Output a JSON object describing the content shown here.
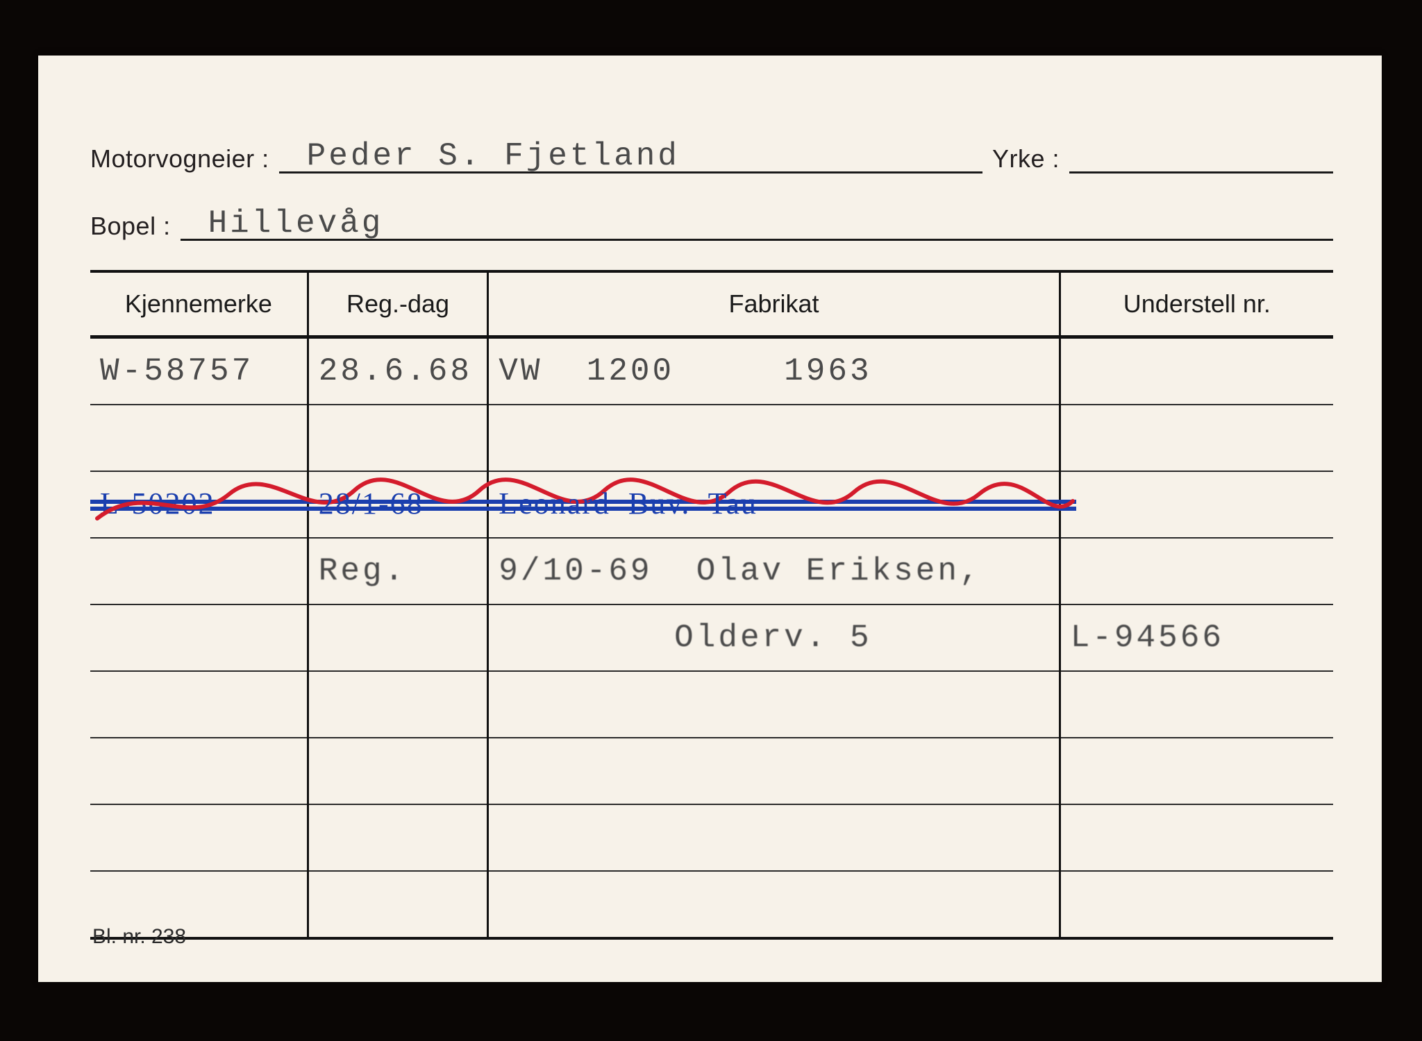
{
  "header": {
    "owner_label": "Motorvogneier :",
    "owner_value": "Peder S. Fjetland",
    "occupation_label": "Yrke :",
    "occupation_value": "",
    "residence_label": "Bopel :",
    "residence_value": "Hillevåg"
  },
  "columns": {
    "c1": "Kjennemerke",
    "c2": "Reg.-dag",
    "c3": "Fabrikat",
    "c4": "Understell nr."
  },
  "col_widths": {
    "c1": "17.5%",
    "c2": "14.5%",
    "c3": "46%",
    "c4": "22%"
  },
  "rows": [
    {
      "c1": "W-58757",
      "c2": "28.6.68",
      "c3": "VW  1200     1963",
      "c4": ""
    },
    {
      "c1": "",
      "c2": "",
      "c3": "",
      "c4": ""
    },
    {
      "c1_hand": "L-50202",
      "c2_hand": "28/1-68",
      "c3_hand": "Leonard  Buv.  Tau",
      "c4": "",
      "struck": true
    },
    {
      "c1": "",
      "c2": "Reg.",
      "c3": "9/10-69  Olav Eriksen,",
      "c4": "",
      "faded": true
    },
    {
      "c1": "",
      "c2": "",
      "c3": "        Olderv. 5",
      "c4": "L-94566",
      "faded": true
    },
    {
      "c1": "",
      "c2": "",
      "c3": "",
      "c4": ""
    },
    {
      "c1": "",
      "c2": "",
      "c3": "",
      "c4": ""
    },
    {
      "c1": "",
      "c2": "",
      "c3": "",
      "c4": ""
    },
    {
      "c1": "",
      "c2": "",
      "c3": "",
      "c4": ""
    }
  ],
  "form_id": "Bl. nr. 238",
  "style": {
    "card_bg": "#f7f2e9",
    "page_bg": "#0a0605",
    "rule_color": "#111111",
    "typed_color": "#4a4a4a",
    "faded_color": "#b9b3a7",
    "ink_blue": "#1b3fae",
    "ink_red": "#d41c2c",
    "label_size_pt": 27,
    "typed_size_pt": 34,
    "header_size_pt": 27
  }
}
